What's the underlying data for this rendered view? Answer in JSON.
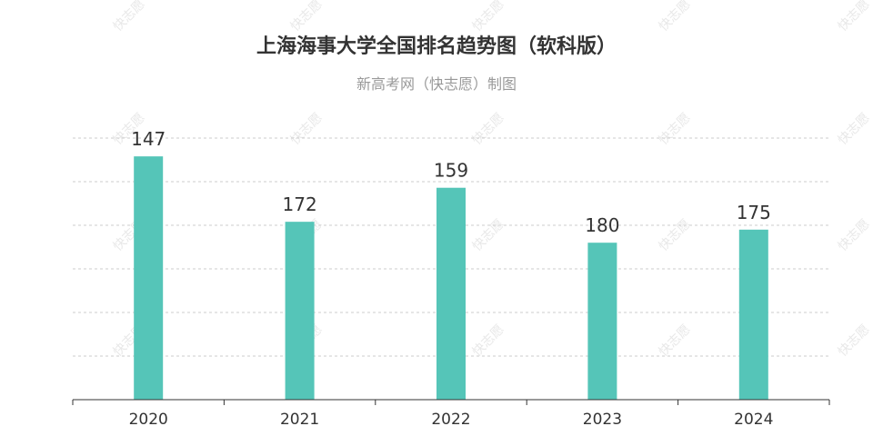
{
  "chart_data": {
    "type": "bar",
    "title": "上海海事大学全国排名趋势图（软科版）",
    "subtitle": "新高考网（快志愿）制图",
    "categories": [
      "2020",
      "2021",
      "2022",
      "2023",
      "2024"
    ],
    "values": [
      147,
      172,
      159,
      180,
      175
    ],
    "y_axis": "reversed rank (smaller rank = taller bar)",
    "ylim": [
      240,
      140
    ],
    "grid": true,
    "legend": "none",
    "bar_color": "#55c5b8",
    "watermark_text": "快志愿"
  }
}
